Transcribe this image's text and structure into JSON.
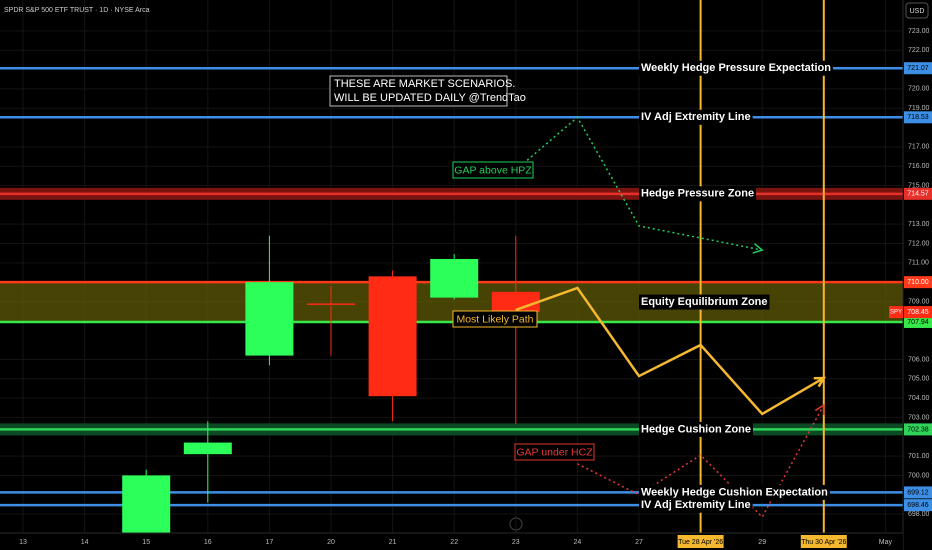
{
  "chart_data": {
    "type": "candlestick",
    "header": "SPDR S&P 500 ETF TRUST · 1D · NYSE Arca",
    "currency": "USD",
    "symbol": "SPY",
    "notice": [
      "THESE ARE MARKET SCENARIOS.",
      "WILL BE UPDATED DAILY @TrendTao"
    ],
    "categories": [
      "13",
      "14",
      "15",
      "16",
      "17",
      "20",
      "21",
      "22",
      "23",
      "24",
      "27",
      "Tue 28 Apr '26",
      "29",
      "Thu 30 Apr '26",
      "May"
    ],
    "open": [
      null,
      null,
      697.0,
      701.1,
      706.2,
      708.9,
      710.3,
      709.2,
      709.5,
      null,
      null,
      null,
      null,
      null,
      null
    ],
    "high": [
      null,
      null,
      700.3,
      702.8,
      712.4,
      709.8,
      710.6,
      711.45,
      712.4,
      null,
      null,
      null,
      null,
      null,
      null
    ],
    "low": [
      null,
      null,
      697.0,
      698.6,
      705.7,
      706.2,
      702.8,
      709.1,
      702.66,
      null,
      null,
      null,
      null,
      null,
      null
    ],
    "close": [
      null,
      null,
      700.0,
      701.7,
      710.0,
      708.85,
      704.1,
      711.2,
      708.45,
      null,
      null,
      null,
      null,
      null,
      null
    ],
    "up_color": "#2cff5a",
    "down_color": "#ff2b15",
    "ylim": [
      697.02,
      724.6
    ],
    "yticks": [
      {
        "value": 723,
        "label": "723.00"
      },
      {
        "value": 722,
        "label": "722.00"
      },
      {
        "value": 720,
        "label": "720.00"
      },
      {
        "value": 719,
        "label": "719.00"
      },
      {
        "value": 717,
        "label": "717.00"
      },
      {
        "value": 716,
        "label": "716.00"
      },
      {
        "value": 715,
        "label": "715.00"
      },
      {
        "value": 713,
        "label": "713.00"
      },
      {
        "value": 712,
        "label": "712.00"
      },
      {
        "value": 711,
        "label": "711.00"
      },
      {
        "value": 709,
        "label": "709.00"
      },
      {
        "value": 706,
        "label": "706.00"
      },
      {
        "value": 705,
        "label": "705.00"
      },
      {
        "value": 704,
        "label": "704.00"
      },
      {
        "value": 703,
        "label": "703.00"
      },
      {
        "value": 701,
        "label": "701.00"
      },
      {
        "value": 700,
        "label": "700.00"
      },
      {
        "value": 698,
        "label": "698.00"
      }
    ],
    "grid": true,
    "levels": [
      {
        "name": "Weekly Hedge Pressure Expectation",
        "value": 721.07,
        "color": "#3d8fe6",
        "text_color": "#000"
      },
      {
        "name": "IV Adj Extremity Line",
        "value": 718.53,
        "color": "#3d8fe6",
        "text_color": "#000"
      },
      {
        "name": "Hedge Pressure Zone",
        "value": 714.57,
        "color": "#e8302a",
        "style": "band",
        "band_color": "#7a1410",
        "text_color": "#fff"
      },
      {
        "name": "Equity Equilibrium Zone",
        "value": 710.0,
        "value_label": "710.00",
        "color": "#ff3a1a",
        "fill": "#5e5a06",
        "text_color": "#fff"
      },
      {
        "value": 707.94,
        "color": "#36e84a",
        "text_color": "#000"
      },
      {
        "name": "Hedge Cushion Zone",
        "value": 702.38,
        "color": "#2fd35a",
        "style": "band",
        "band_color": "#0c4a24",
        "text_color": "#000"
      },
      {
        "name": "Weekly Hedge Cushion Expectation",
        "value": 699.12,
        "color": "#3d8fe6",
        "text_color": "#000"
      },
      {
        "name": "IV Adj Extremity Line",
        "value": 698.46,
        "color": "#3d8fe6",
        "text_color": "#000"
      }
    ],
    "paths": [
      {
        "name": "Most Likely Path",
        "color": "#f5b82e",
        "dashed": false,
        "x": [
          "23",
          "24",
          "27",
          "Tue 28 Apr '26",
          "29",
          "Thu 30 Apr '26"
        ],
        "values": [
          708.56,
          709.7,
          705.14,
          706.75,
          703.18,
          705.04
        ]
      },
      {
        "name": "GAP above HPZ",
        "color": "#22d05a",
        "dashed": true,
        "x": [
          "23",
          "24",
          "27",
          "29"
        ],
        "values": [
          715.8,
          718.53,
          712.91,
          711.66
        ]
      },
      {
        "name": "GAP under HCZ",
        "color": "#e53935",
        "dashed": true,
        "x": [
          "24",
          "27",
          "Tue 28 Apr '26",
          "29",
          "Thu 30 Apr '26"
        ],
        "values": [
          700.6,
          699.0,
          701.05,
          697.85,
          703.64
        ]
      }
    ],
    "vlines": [
      "Tue 28 Apr '26",
      "Thu 30 Apr '26"
    ],
    "vline_color": "#f5b82e"
  }
}
